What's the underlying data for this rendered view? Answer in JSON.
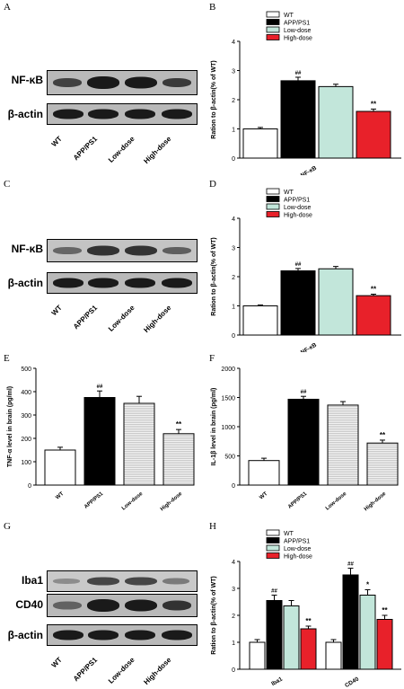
{
  "panel_letters": [
    "A",
    "B",
    "C",
    "D",
    "E",
    "F",
    "G",
    "H"
  ],
  "blots": [
    {
      "labels": [
        "NF-κB",
        "β-actin"
      ],
      "lanes": [
        "WT",
        "APP/PS1",
        "Low-dose",
        "High-dose"
      ]
    },
    {
      "labels": [
        "NF-κB",
        "β-actin"
      ],
      "lanes": [
        "WT",
        "APP/PS1",
        "Low-dose",
        "High-dose"
      ]
    },
    {
      "labels": [
        "Iba1",
        "CD40",
        "β-actin"
      ],
      "lanes": [
        "WT",
        "APP/PS1",
        "Low-dose",
        "High-dose"
      ]
    }
  ],
  "colors": {
    "WT": "#ffffff",
    "APP/PS1": "#000000",
    "Low-dose": "#c2e6da",
    "High-dose": "#e8212a"
  },
  "chart_data": [
    {
      "panel": "B",
      "type": "bar",
      "legend": [
        "WT",
        "APP/PS1",
        "Low-dose",
        "High-dose"
      ],
      "categories": [
        "NF-κB"
      ],
      "series": [
        {
          "name": "WT",
          "values": [
            1.0
          ],
          "errors": [
            0.05
          ]
        },
        {
          "name": "APP/PS1",
          "values": [
            2.65
          ],
          "errors": [
            0.12
          ]
        },
        {
          "name": "Low-dose",
          "values": [
            2.45
          ],
          "errors": [
            0.08
          ]
        },
        {
          "name": "High-dose",
          "values": [
            1.6
          ],
          "errors": [
            0.08
          ]
        }
      ],
      "annotations": [
        "",
        "##",
        "",
        "**"
      ],
      "ylabel": "Ration to β-actin(% of WT)",
      "ylim": [
        0,
        4
      ],
      "yticks": [
        0,
        1,
        2,
        3,
        4
      ]
    },
    {
      "panel": "D",
      "type": "bar",
      "legend": [
        "WT",
        "APP/PS1",
        "Low-dose",
        "High-dose"
      ],
      "categories": [
        "NF-κB"
      ],
      "series": [
        {
          "name": "WT",
          "values": [
            1.0
          ],
          "errors": [
            0.03
          ]
        },
        {
          "name": "APP/PS1",
          "values": [
            2.2
          ],
          "errors": [
            0.08
          ]
        },
        {
          "name": "Low-dose",
          "values": [
            2.27
          ],
          "errors": [
            0.08
          ]
        },
        {
          "name": "High-dose",
          "values": [
            1.35
          ],
          "errors": [
            0.05
          ]
        }
      ],
      "annotations": [
        "",
        "##",
        "",
        "**"
      ],
      "ylabel": "Ration to β-actin(% of WT)",
      "ylim": [
        0,
        4
      ],
      "yticks": [
        0,
        1,
        2,
        3,
        4
      ]
    },
    {
      "panel": "E",
      "type": "bar",
      "categories": [
        "WT",
        "APP/PS1",
        "Low-dose",
        "High-dose"
      ],
      "values": [
        150,
        375,
        350,
        220
      ],
      "errors": [
        12,
        28,
        30,
        18
      ],
      "annotations": [
        "",
        "##",
        "",
        "**"
      ],
      "fills": [
        "white",
        "black",
        "lightstripe",
        "lightstripe"
      ],
      "ylabel": "TNF-α level in brain (pg/ml)",
      "ylim": [
        0,
        500
      ],
      "yticks": [
        0,
        100,
        200,
        300,
        400,
        500
      ]
    },
    {
      "panel": "F",
      "type": "bar",
      "categories": [
        "WT",
        "APP/PS1",
        "Low-dose",
        "High-dose"
      ],
      "values": [
        420,
        1470,
        1370,
        720
      ],
      "errors": [
        40,
        50,
        60,
        50
      ],
      "annotations": [
        "",
        "##",
        "",
        "**"
      ],
      "fills": [
        "white",
        "black",
        "lightstripe",
        "lightstripe"
      ],
      "ylabel": "IL-1β level in brain (pg/ml)",
      "ylim": [
        0,
        2000
      ],
      "yticks": [
        0,
        500,
        1000,
        1500,
        2000
      ]
    },
    {
      "panel": "H",
      "type": "bar",
      "legend": [
        "WT",
        "APP/PS1",
        "Low-dose",
        "High-dose"
      ],
      "categories": [
        "Iba1",
        "CD40"
      ],
      "series": [
        {
          "name": "WT",
          "values": [
            1.0,
            1.0
          ],
          "errors": [
            0.1,
            0.1
          ]
        },
        {
          "name": "APP/PS1",
          "values": [
            2.55,
            3.5
          ],
          "errors": [
            0.2,
            0.25
          ]
        },
        {
          "name": "Low-dose",
          "values": [
            2.35,
            2.75
          ],
          "errors": [
            0.2,
            0.2
          ]
        },
        {
          "name": "High-dose",
          "values": [
            1.5,
            1.85
          ],
          "errors": [
            0.1,
            0.15
          ]
        }
      ],
      "annotations": [
        [
          "",
          "##",
          "",
          "**"
        ],
        [
          "",
          "##",
          "*",
          "**"
        ]
      ],
      "ylabel": "Ration to β-actin(% of WT)",
      "ylim": [
        0,
        4
      ],
      "yticks": [
        0,
        1,
        2,
        3,
        4
      ]
    }
  ]
}
